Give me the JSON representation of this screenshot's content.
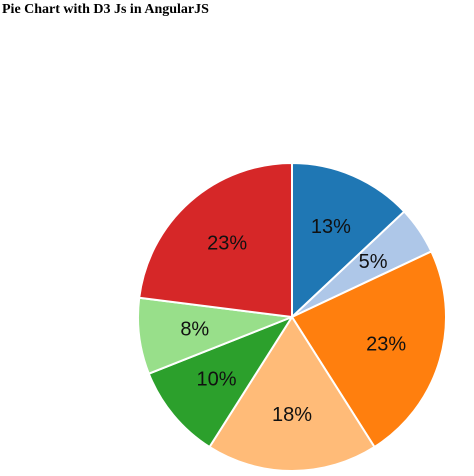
{
  "page": {
    "title": "Pie Chart with D3 Js in AngularJS"
  },
  "chart_data": {
    "type": "pie",
    "start": "12 o'clock",
    "direction": "clockwise",
    "slices": [
      {
        "label": "13%",
        "value": 13,
        "color": "#1f77b4"
      },
      {
        "label": "5%",
        "value": 5,
        "color": "#aec7e8"
      },
      {
        "label": "23%",
        "value": 23,
        "color": "#ff7f0e"
      },
      {
        "label": "18%",
        "value": 18,
        "color": "#ffbb78"
      },
      {
        "label": "10%",
        "value": 10,
        "color": "#2ca02c"
      },
      {
        "label": "8%",
        "value": 8,
        "color": "#98df8a"
      },
      {
        "label": "23%",
        "value": 23,
        "color": "#d62728"
      }
    ]
  }
}
